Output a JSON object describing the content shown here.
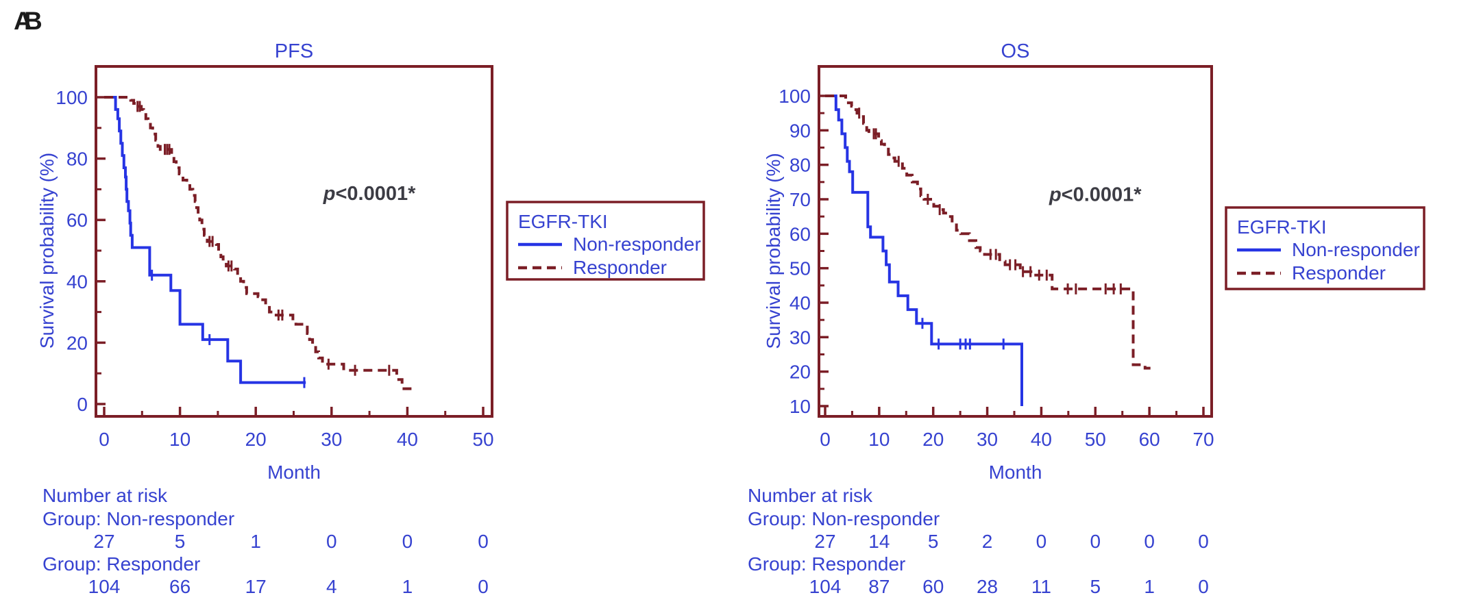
{
  "figure_type": "kaplan-meier-survival-figure",
  "colors": {
    "curve_blue": "#2634e4",
    "text_blue": "#3642d0",
    "maroon": "#7b1e26",
    "p_text": "#3c3c44",
    "panel_letter": "#1b1b1b",
    "background": "#ffffff"
  },
  "chart_data": [
    {
      "type": "line",
      "subtype": "kaplan-meier-step",
      "panel_label": "A",
      "title": "PFS",
      "xlabel": "Month",
      "ylabel": "Survival probability (%)",
      "xlim": [
        0,
        52
      ],
      "ylim": [
        0,
        100
      ],
      "x_ticks": [
        0,
        10,
        20,
        30,
        40,
        50
      ],
      "x_minor_ticks": [
        5,
        15,
        25,
        35,
        45
      ],
      "y_ticks": [
        0,
        20,
        40,
        60,
        80,
        100
      ],
      "y_minor_ticks": [
        10,
        30,
        50,
        70,
        90
      ],
      "grid": false,
      "annotation": {
        "italic_part": "p",
        "text_part": "<0.0001*",
        "x": 35,
        "y": 66.5
      },
      "legend": {
        "title": "EGFR-TKI",
        "position": "right-outside",
        "entries": [
          {
            "name": "Non-responder",
            "line": "solid",
            "color_key": "curve_blue"
          },
          {
            "name": "Responder",
            "line": "dashed",
            "color_key": "maroon"
          }
        ]
      },
      "series": [
        {
          "name": "Non-responder",
          "color_key": "curve_blue",
          "dash": "solid",
          "steps": [
            [
              0,
              100
            ],
            [
              1.5,
              96
            ],
            [
              1.8,
              93
            ],
            [
              2.0,
              89
            ],
            [
              2.2,
              85
            ],
            [
              2.4,
              81
            ],
            [
              2.6,
              77
            ],
            [
              2.8,
              74
            ],
            [
              2.9,
              70
            ],
            [
              3.0,
              66
            ],
            [
              3.2,
              63
            ],
            [
              3.4,
              59
            ],
            [
              3.5,
              55
            ],
            [
              3.7,
              51
            ],
            [
              6.0,
              42
            ],
            [
              8.8,
              37
            ],
            [
              10.0,
              26
            ],
            [
              13.0,
              21
            ],
            [
              16.3,
              14
            ],
            [
              18.0,
              7
            ],
            [
              26.6,
              7
            ]
          ],
          "censors": [
            6.3,
            13.9,
            26.4
          ]
        },
        {
          "name": "Responder",
          "color_key": "maroon",
          "dash": "dashed",
          "steps": [
            [
              0,
              100
            ],
            [
              3.5,
              99
            ],
            [
              3.9,
              98
            ],
            [
              4.2,
              97
            ],
            [
              4.9,
              96
            ],
            [
              5.2,
              95
            ],
            [
              5.5,
              93
            ],
            [
              5.8,
              92
            ],
            [
              6.1,
              90
            ],
            [
              6.4,
              88
            ],
            [
              6.8,
              86
            ],
            [
              7.1,
              84
            ],
            [
              7.4,
              83
            ],
            [
              8.9,
              81
            ],
            [
              9.2,
              79
            ],
            [
              9.5,
              77
            ],
            [
              9.9,
              75
            ],
            [
              10.4,
              73
            ],
            [
              10.9,
              72
            ],
            [
              11.3,
              70
            ],
            [
              11.7,
              68
            ],
            [
              12.0,
              66
            ],
            [
              12.2,
              64
            ],
            [
              12.4,
              62
            ],
            [
              12.6,
              60
            ],
            [
              12.9,
              57
            ],
            [
              13.2,
              55
            ],
            [
              13.6,
              53
            ],
            [
              14.8,
              52
            ],
            [
              15.1,
              50
            ],
            [
              15.4,
              48
            ],
            [
              15.7,
              46
            ],
            [
              16.1,
              45
            ],
            [
              17.2,
              44
            ],
            [
              17.6,
              42
            ],
            [
              18.0,
              40
            ],
            [
              18.4,
              38
            ],
            [
              18.8,
              36
            ],
            [
              20.3,
              35
            ],
            [
              20.7,
              34
            ],
            [
              21.3,
              32
            ],
            [
              21.8,
              30
            ],
            [
              22.2,
              29
            ],
            [
              24.9,
              27
            ],
            [
              25.3,
              26
            ],
            [
              26.8,
              23
            ],
            [
              27.1,
              21
            ],
            [
              27.5,
              19
            ],
            [
              27.9,
              17
            ],
            [
              28.3,
              15
            ],
            [
              28.8,
              13
            ],
            [
              31.6,
              11
            ],
            [
              38.6,
              8
            ],
            [
              39.3,
              5
            ],
            [
              41.2,
              5
            ]
          ],
          "censors": [
            4.4,
            4.7,
            8.0,
            8.3,
            8.6,
            13.9,
            14.3,
            16.4,
            16.8,
            23.0,
            23.5,
            29.6,
            33.1,
            37.6
          ]
        }
      ],
      "at_risk": {
        "header": "Number at risk",
        "groups": [
          {
            "label": "Group: Non-responder",
            "counts": [
              27,
              5,
              1,
              0,
              0,
              0
            ]
          },
          {
            "label": "Group: Responder",
            "counts": [
              104,
              66,
              17,
              4,
              1,
              0
            ]
          }
        ]
      }
    },
    {
      "type": "line",
      "subtype": "kaplan-meier-step",
      "panel_label": "B",
      "title": "OS",
      "xlabel": "Month",
      "ylabel": "Survival probability (%)",
      "xlim": [
        0,
        72
      ],
      "ylim": [
        10,
        100
      ],
      "x_ticks": [
        0,
        10,
        20,
        30,
        40,
        50,
        60,
        70
      ],
      "x_minor_ticks": [
        5,
        15,
        25,
        35,
        45,
        55,
        65
      ],
      "y_ticks": [
        10,
        20,
        30,
        40,
        50,
        60,
        70,
        80,
        90,
        100
      ],
      "y_minor_ticks": [
        15,
        25,
        35,
        45,
        55,
        65,
        75,
        85,
        95
      ],
      "grid": false,
      "annotation": {
        "italic_part": "p",
        "text_part": "<0.0001*",
        "x": 50,
        "y": 69.5
      },
      "legend": {
        "title": "EGFR-TKI",
        "position": "right-outside",
        "entries": [
          {
            "name": "Non-responder",
            "line": "solid",
            "color_key": "curve_blue"
          },
          {
            "name": "Responder",
            "line": "dashed",
            "color_key": "maroon"
          }
        ]
      },
      "series": [
        {
          "name": "Non-responder",
          "color_key": "curve_blue",
          "dash": "solid",
          "steps": [
            [
              0,
              100
            ],
            [
              2.0,
              96
            ],
            [
              2.5,
              93
            ],
            [
              3.1,
              89
            ],
            [
              3.7,
              85
            ],
            [
              4.1,
              81
            ],
            [
              4.5,
              78
            ],
            [
              5.1,
              72
            ],
            [
              7.9,
              62
            ],
            [
              8.4,
              59
            ],
            [
              10.7,
              55
            ],
            [
              11.3,
              51
            ],
            [
              11.9,
              46
            ],
            [
              13.5,
              42
            ],
            [
              15.3,
              38
            ],
            [
              16.9,
              34
            ],
            [
              19.7,
              28
            ],
            [
              36.4,
              10
            ]
          ],
          "censors": [
            18.0,
            21.0,
            25.0,
            26.0,
            26.8,
            33.0
          ]
        },
        {
          "name": "Responder",
          "color_key": "maroon",
          "dash": "dashed",
          "steps": [
            [
              0,
              100
            ],
            [
              3.8,
              99
            ],
            [
              4.3,
              98
            ],
            [
              4.9,
              97
            ],
            [
              5.4,
              96
            ],
            [
              5.9,
              95
            ],
            [
              6.5,
              94
            ],
            [
              7.1,
              92
            ],
            [
              7.7,
              90
            ],
            [
              8.1,
              89
            ],
            [
              9.9,
              87
            ],
            [
              10.4,
              86
            ],
            [
              11.0,
              85
            ],
            [
              11.7,
              83
            ],
            [
              12.3,
              82
            ],
            [
              12.9,
              81
            ],
            [
              14.3,
              79
            ],
            [
              15.1,
              77
            ],
            [
              16.1,
              75
            ],
            [
              17.1,
              73
            ],
            [
              17.7,
              71
            ],
            [
              18.3,
              70
            ],
            [
              20.1,
              68
            ],
            [
              20.9,
              67
            ],
            [
              21.9,
              66
            ],
            [
              22.7,
              65
            ],
            [
              23.5,
              63
            ],
            [
              24.3,
              61
            ],
            [
              25.1,
              60
            ],
            [
              26.7,
              58
            ],
            [
              27.9,
              56
            ],
            [
              28.7,
              55
            ],
            [
              29.5,
              54
            ],
            [
              32.3,
              52
            ],
            [
              33.3,
              51
            ],
            [
              36.1,
              49
            ],
            [
              38.4,
              48
            ],
            [
              42.0,
              44
            ],
            [
              57.0,
              22
            ],
            [
              59.2,
              21
            ],
            [
              60.2,
              21
            ]
          ],
          "censors": [
            6.3,
            9.0,
            9.4,
            13.6,
            19.0,
            21.2,
            30.6,
            31.6,
            34.2,
            35.2,
            36.6,
            38.0,
            39.6,
            41.0,
            44.9,
            46.4,
            51.9,
            53.4,
            54.7
          ]
        }
      ],
      "at_risk": {
        "header": "Number at risk",
        "groups": [
          {
            "label": "Group: Non-responder",
            "counts": [
              27,
              14,
              5,
              2,
              0,
              0,
              0,
              0
            ]
          },
          {
            "label": "Group: Responder",
            "counts": [
              104,
              87,
              60,
              28,
              11,
              5,
              1,
              0
            ]
          }
        ]
      }
    }
  ]
}
